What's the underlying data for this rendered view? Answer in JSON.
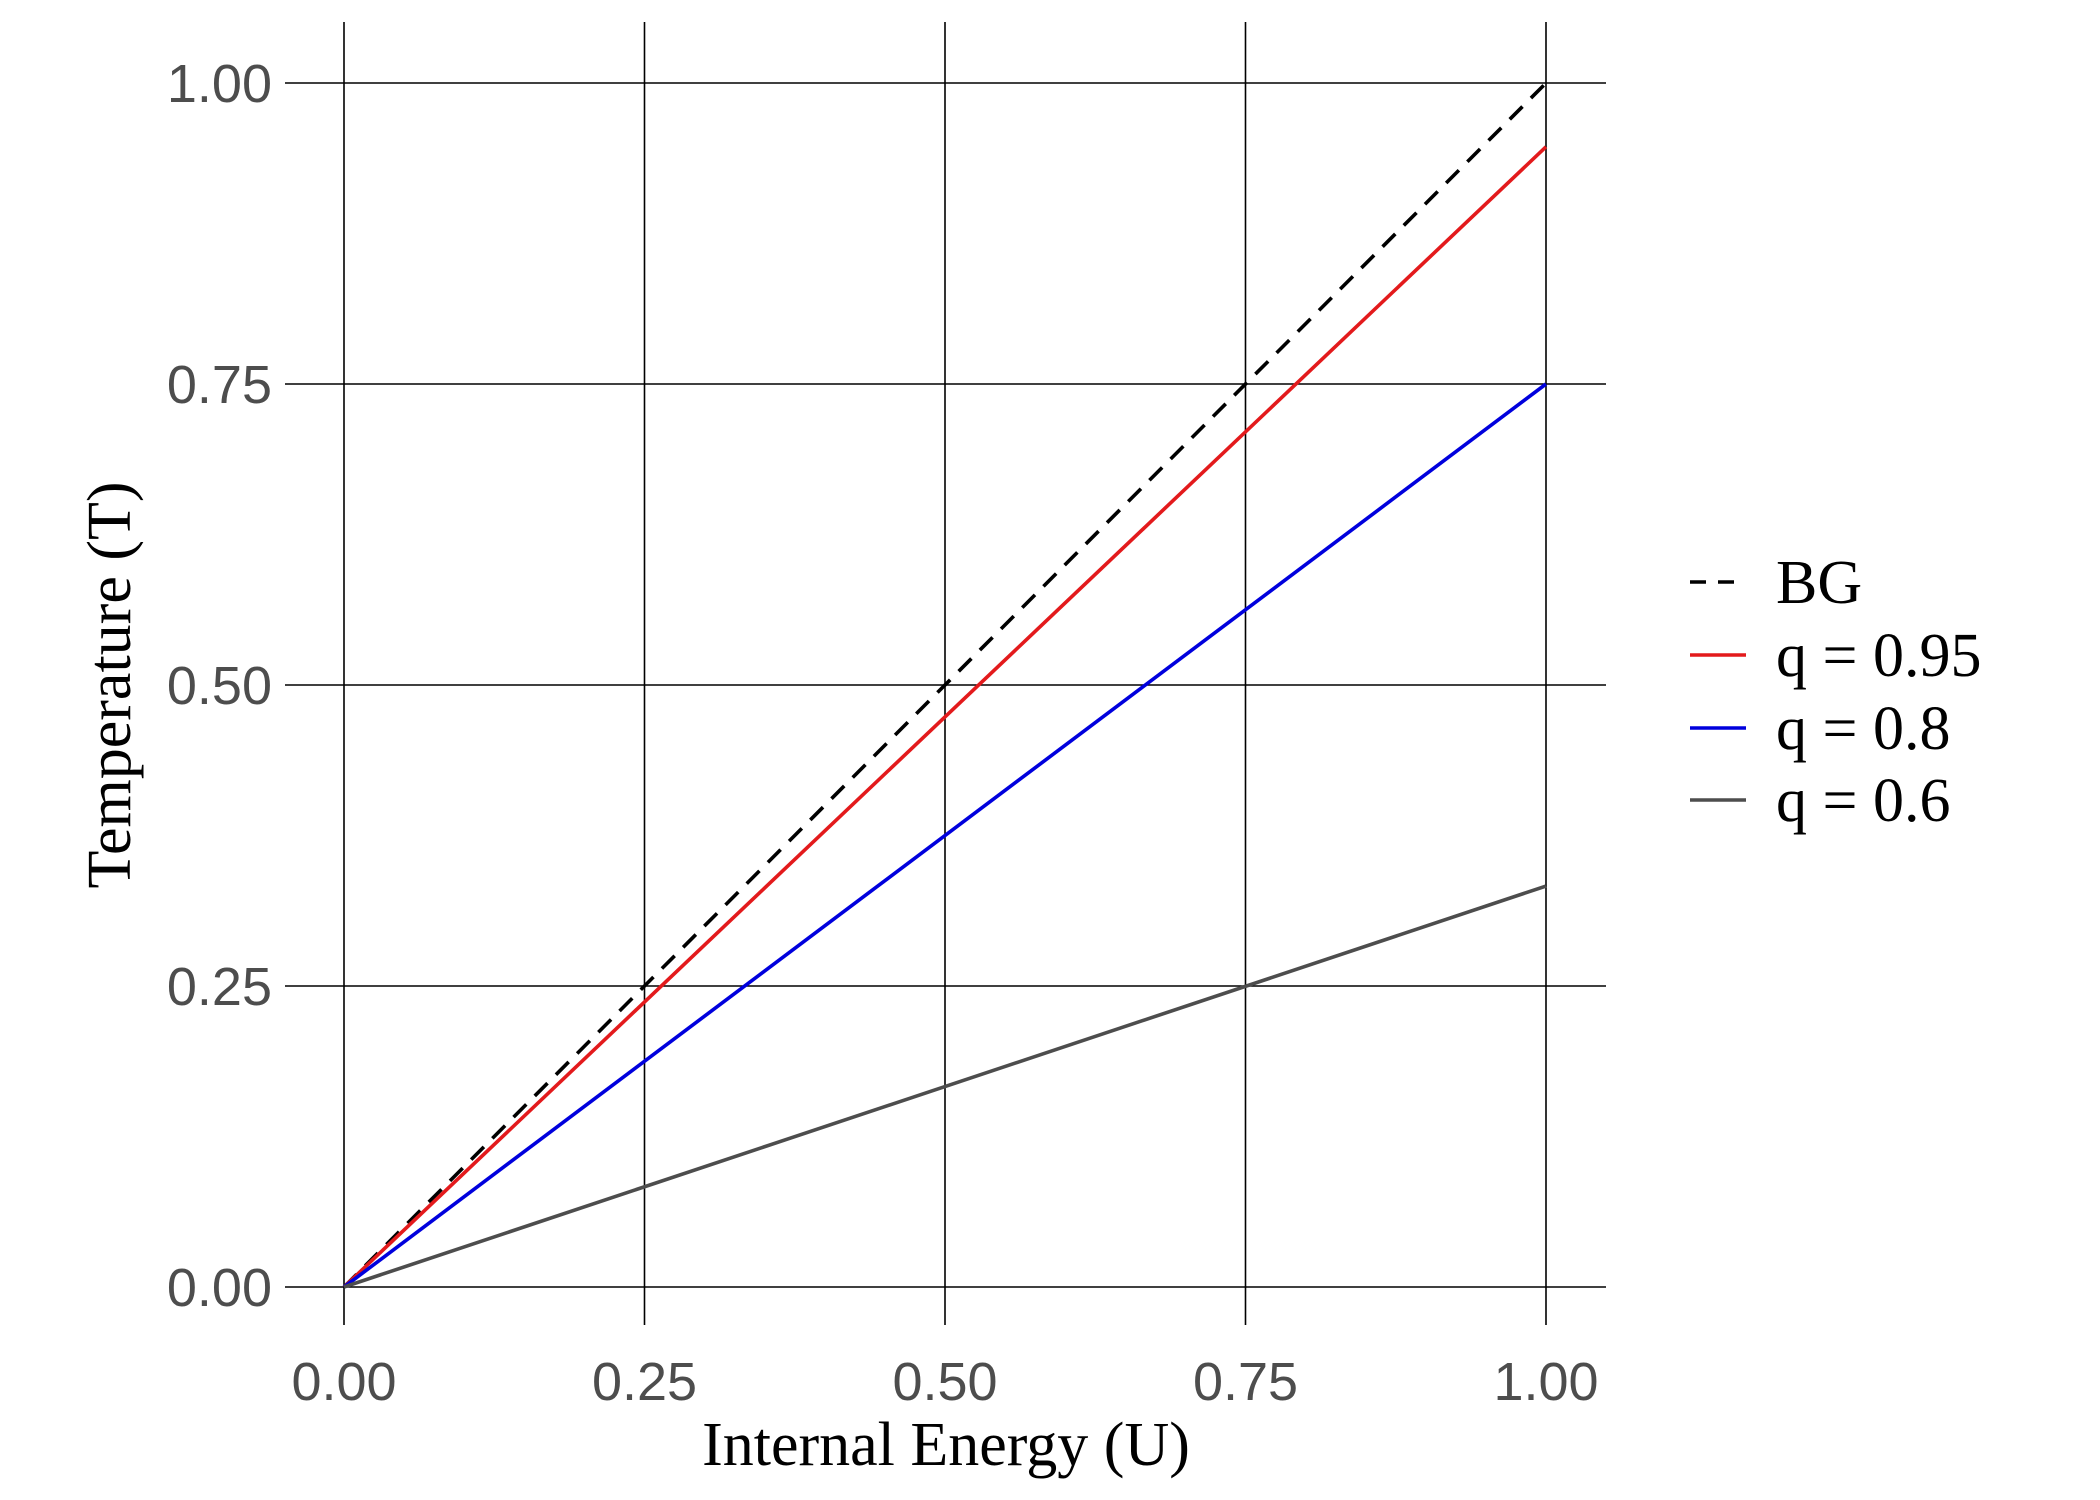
{
  "chart_data": {
    "type": "line",
    "title": "",
    "xlabel": "Internal Energy (U)",
    "ylabel": "Temperature (T)",
    "xlim": [
      0,
      1
    ],
    "ylim": [
      0,
      1
    ],
    "x_ticks": [
      0,
      0.25,
      0.5,
      0.75,
      1
    ],
    "x_tick_labels": [
      "0.00",
      "0.25",
      "0.50",
      "0.75",
      "1.00"
    ],
    "y_ticks": [
      0,
      0.25,
      0.5,
      0.75,
      1
    ],
    "y_tick_labels": [
      "0.00",
      "0.25",
      "0.50",
      "0.75",
      "1.00"
    ],
    "grid": true,
    "legend_position": "right",
    "series": [
      {
        "name": "BG",
        "color": "#000000",
        "dash": "dashed",
        "x": [
          0,
          1
        ],
        "y": [
          0,
          1
        ]
      },
      {
        "name": "q = 0.95",
        "color": "#e31a1c",
        "dash": "solid",
        "x": [
          0,
          1
        ],
        "y": [
          0,
          0.947
        ]
      },
      {
        "name": "q = 0.8",
        "color": "#0000dd",
        "dash": "solid",
        "x": [
          0,
          1
        ],
        "y": [
          0,
          0.75
        ]
      },
      {
        "name": "q = 0.6",
        "color": "#4d4d4d",
        "dash": "solid",
        "x": [
          0,
          1
        ],
        "y": [
          0,
          0.333
        ]
      }
    ]
  }
}
